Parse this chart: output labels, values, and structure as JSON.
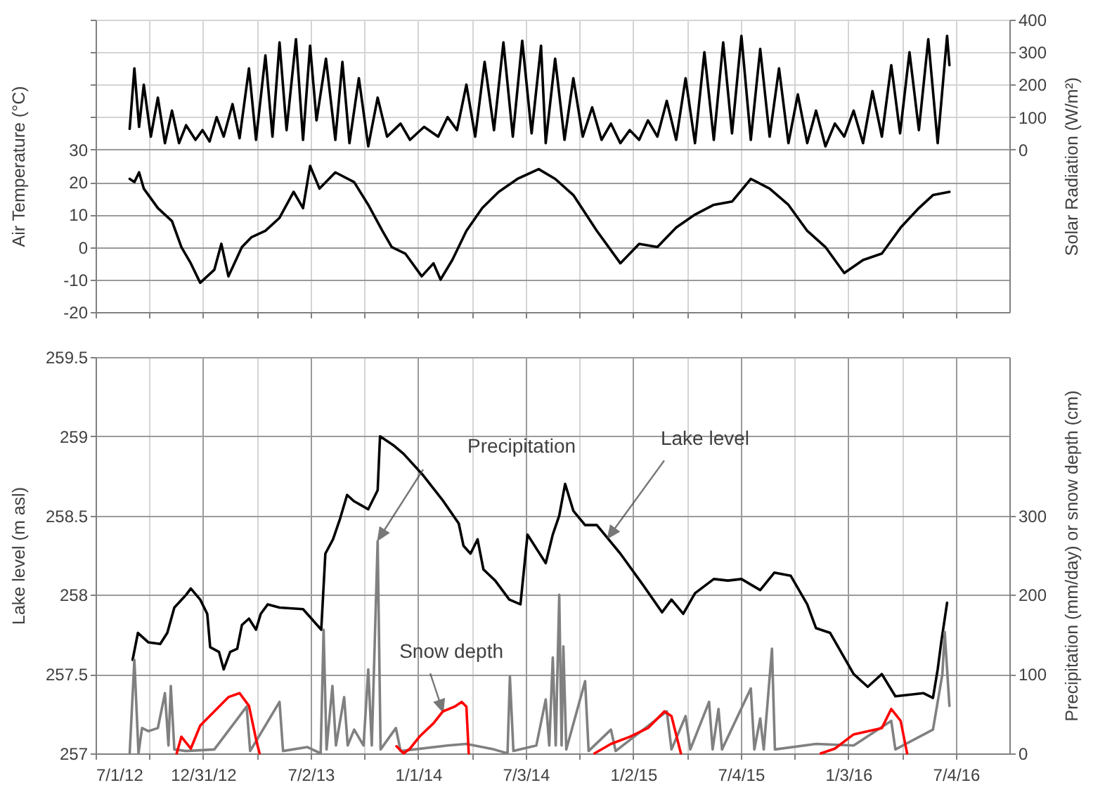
{
  "chart_data": [
    {
      "type": "line",
      "ylabel": "Air Temperature (°C)",
      "y2label": "Solar Radiation (W/m²)",
      "tick_labels": "y",
      "grid": true,
      "xlim": [
        "2012-07-01",
        "2016-10-03"
      ],
      "xticks": [
        {
          "value": "2012-07-01",
          "label": null
        },
        {
          "value": "2012-09-30",
          "label": null
        },
        {
          "value": "2012-12-31",
          "label": null
        },
        {
          "value": "2013-04-01",
          "label": null
        },
        {
          "value": "2013-07-02",
          "label": null
        },
        {
          "value": "2013-10-01",
          "label": null
        },
        {
          "value": "2014-01-01",
          "label": null
        },
        {
          "value": "2014-04-02",
          "label": null
        },
        {
          "value": "2014-07-03",
          "label": null
        },
        {
          "value": "2014-10-02",
          "label": null
        },
        {
          "value": "2015-01-02",
          "label": null
        },
        {
          "value": "2015-04-03",
          "label": null
        },
        {
          "value": "2015-07-04",
          "label": null
        },
        {
          "value": "2015-10-03",
          "label": null
        },
        {
          "value": "2016-01-03",
          "label": null
        },
        {
          "value": "2016-04-03",
          "label": null
        },
        {
          "value": "2016-07-04",
          "label": null
        }
      ],
      "ylim": [
        -20,
        70
      ],
      "yticks": [
        -20,
        -10,
        0,
        10,
        20,
        30,
        {
          "value": 40,
          "label": null
        },
        {
          "value": 50,
          "label": null
        },
        {
          "value": 60,
          "label": null
        },
        {
          "value": 70,
          "label": null
        }
      ],
      "y2lim": [
        -500,
        400
      ],
      "y2ticks": [
        0,
        100,
        200,
        300,
        400
      ],
      "series": [
        {
          "color": "#000000",
          "x": [
            "2012-08-28",
            "2012-09-05",
            "2012-09-13",
            "2012-09-21",
            "2012-10-15",
            "2012-11-08",
            "2012-11-24",
            "2012-12-10",
            "2012-12-26",
            "2013-01-19",
            "2013-01-31",
            "2013-02-12",
            "2013-03-07",
            "2013-03-23",
            "2013-04-16",
            "2013-05-10",
            "2013-06-03",
            "2013-06-19",
            "2013-07-01",
            "2013-07-17",
            "2013-08-13",
            "2013-09-14",
            "2013-10-08",
            "2013-11-01",
            "2013-11-17",
            "2013-12-10",
            "2014-01-07",
            "2014-01-27",
            "2014-02-08",
            "2014-02-28",
            "2014-03-24",
            "2014-04-20",
            "2014-05-18",
            "2014-06-19",
            "2014-07-25",
            "2014-08-22",
            "2014-09-22",
            "2014-11-01",
            "2014-11-25",
            "2014-12-11",
            "2015-01-12",
            "2015-02-12",
            "2015-03-16",
            "2015-04-17",
            "2015-05-19",
            "2015-06-19",
            "2015-07-21",
            "2015-08-22",
            "2015-09-23",
            "2015-10-25",
            "2015-11-25",
            "2015-12-27",
            "2016-01-28",
            "2016-02-29",
            "2016-04-01",
            "2016-05-02",
            "2016-05-26",
            "2016-06-23"
          ],
          "values": [
            21,
            20,
            23,
            18,
            12,
            8,
            0,
            -5,
            -11,
            -7,
            1,
            -9,
            0,
            3,
            5,
            9,
            17,
            12,
            25,
            18,
            23,
            20,
            13,
            5,
            0,
            -2,
            -9,
            -5,
            -10,
            -4,
            5,
            12,
            17,
            21,
            24,
            21,
            16,
            5,
            -1,
            -5,
            1,
            0,
            6,
            10,
            13,
            14,
            21,
            18,
            13,
            5,
            0,
            -8,
            -4,
            -2,
            6,
            12,
            16,
            17
          ]
        },
        {
          "color": "#000000",
          "axis": "y2",
          "x": [
            "2012-08-28",
            "2012-09-05",
            "2012-09-13",
            "2012-09-21",
            "2012-10-03",
            "2012-10-15",
            "2012-10-27",
            "2012-11-08",
            "2012-11-20",
            "2012-12-02",
            "2012-12-18",
            "2012-12-30",
            "2013-01-11",
            "2013-01-23",
            "2013-02-04",
            "2013-02-19",
            "2013-03-03",
            "2013-03-19",
            "2013-03-31",
            "2013-04-16",
            "2013-04-28",
            "2013-05-10",
            "2013-05-22",
            "2013-06-07",
            "2013-06-19",
            "2013-07-01",
            "2013-07-12",
            "2013-07-28",
            "2013-08-13",
            "2013-08-25",
            "2013-09-06",
            "2013-09-22",
            "2013-10-08",
            "2013-10-24",
            "2013-11-09",
            "2013-12-02",
            "2013-12-18",
            "2014-01-11",
            "2014-02-04",
            "2014-02-20",
            "2014-03-08",
            "2014-03-24",
            "2014-04-08",
            "2014-04-24",
            "2014-05-10",
            "2014-05-26",
            "2014-06-11",
            "2014-06-27",
            "2014-07-13",
            "2014-07-29",
            "2014-08-06",
            "2014-08-22",
            "2014-09-07",
            "2014-09-22",
            "2014-10-08",
            "2014-10-24",
            "2014-11-09",
            "2014-11-25",
            "2014-12-11",
            "2014-12-27",
            "2015-01-12",
            "2015-01-27",
            "2015-02-12",
            "2015-02-28",
            "2015-03-16",
            "2015-04-01",
            "2015-04-17",
            "2015-05-03",
            "2015-05-19",
            "2015-06-04",
            "2015-06-19",
            "2015-07-05",
            "2015-07-21",
            "2015-08-06",
            "2015-08-22",
            "2015-09-07",
            "2015-09-23",
            "2015-10-09",
            "2015-10-25",
            "2015-11-09",
            "2015-11-25",
            "2015-12-11",
            "2015-12-27",
            "2016-01-12",
            "2016-01-28",
            "2016-02-13",
            "2016-02-29",
            "2016-03-16",
            "2016-03-31",
            "2016-04-16",
            "2016-05-02",
            "2016-05-18",
            "2016-06-03",
            "2016-06-19",
            "2016-06-23"
          ],
          "values": [
            64,
            250,
            70,
            200,
            40,
            160,
            20,
            120,
            20,
            75,
            30,
            60,
            25,
            100,
            40,
            140,
            35,
            250,
            30,
            290,
            40,
            330,
            60,
            340,
            30,
            320,
            90,
            280,
            30,
            270,
            20,
            220,
            10,
            160,
            40,
            80,
            30,
            70,
            40,
            100,
            60,
            200,
            40,
            270,
            60,
            330,
            40,
            335,
            50,
            320,
            20,
            280,
            30,
            220,
            40,
            130,
            30,
            80,
            20,
            60,
            30,
            90,
            40,
            150,
            30,
            220,
            20,
            300,
            30,
            330,
            50,
            350,
            30,
            310,
            40,
            250,
            20,
            170,
            20,
            120,
            10,
            80,
            40,
            120,
            20,
            180,
            40,
            260,
            50,
            300,
            60,
            340,
            20,
            350,
            260
          ]
        }
      ]
    },
    {
      "type": "line",
      "ylabel": "Lake level (m asl)",
      "y2label": "Precipitation (mm/day) or snow depth (cm)",
      "grid": true,
      "xlim": [
        "2012-07-01",
        "2016-10-03"
      ],
      "xticks": [
        {
          "value": "2012-07-01",
          "label": "7/1/12"
        },
        {
          "value": "2012-09-30",
          "label": null
        },
        {
          "value": "2012-12-31",
          "label": "12/31/12"
        },
        {
          "value": "2013-04-01",
          "label": null
        },
        {
          "value": "2013-07-02",
          "label": "7/2/13"
        },
        {
          "value": "2013-10-01",
          "label": null
        },
        {
          "value": "2014-01-01",
          "label": "1/1/14"
        },
        {
          "value": "2014-04-02",
          "label": null
        },
        {
          "value": "2014-07-03",
          "label": "7/3/14"
        },
        {
          "value": "2014-10-02",
          "label": null
        },
        {
          "value": "2015-01-02",
          "label": "1/2/15"
        },
        {
          "value": "2015-04-03",
          "label": null
        },
        {
          "value": "2015-07-04",
          "label": "7/4/15"
        },
        {
          "value": "2015-10-03",
          "label": null
        },
        {
          "value": "2016-01-03",
          "label": "1/3/16"
        },
        {
          "value": "2016-04-03",
          "label": null
        },
        {
          "value": "2016-07-04",
          "label": "7/4/16"
        }
      ],
      "ylim": [
        257,
        259.5
      ],
      "yticks": [
        257,
        257.5,
        258,
        258.5,
        259,
        259.5
      ],
      "y2lim": [
        0,
        500
      ],
      "y2ticks": [
        0,
        100,
        200,
        300
      ],
      "annotations": [
        "Precipitation",
        {
          "text": "Lake level",
          "x": "2014-11-20",
          "y": 258.36
        },
        {
          "text": "Snow depth",
          "x": "2014-02-12",
          "y": 257.265
        }
      ],
      "series": [
        {
          "color": "#808080",
          "axis": "y2",
          "x": [
            "2012-08-28",
            "2012-09-05",
            "2012-09-12",
            "2012-09-18",
            "2012-09-29",
            "2012-10-15",
            "2012-10-27",
            "2012-11-02",
            "2012-11-06",
            "2012-11-12",
            "2012-12-02",
            "2013-01-19",
            "2013-03-15",
            "2013-03-21",
            "2013-05-10",
            "2013-05-16",
            "2013-06-26",
            "2013-07-19",
            "2013-07-24",
            "2013-07-29",
            "2013-08-08",
            "2013-08-14",
            "2013-08-28",
            "2013-09-03",
            "2013-09-14",
            "2013-09-30",
            "2013-10-08",
            "2013-10-14",
            "2013-10-24",
            "2013-10-29",
            "2013-11-24",
            "2013-12-02",
            "2014-02-20",
            "2014-03-24",
            "2014-05-10",
            "2014-06-02",
            "2014-06-06",
            "2014-06-12",
            "2014-07-21",
            "2014-08-06",
            "2014-08-12",
            "2014-08-18",
            "2014-08-23",
            "2014-08-29",
            "2014-09-02",
            "2014-09-05",
            "2014-09-10",
            "2014-10-12",
            "2014-10-18",
            "2014-11-25",
            "2014-12-03",
            "2015-02-28",
            "2015-03-08",
            "2015-04-01",
            "2015-04-09",
            "2015-05-11",
            "2015-05-17",
            "2015-05-27",
            "2015-06-02",
            "2015-07-21",
            "2015-07-27",
            "2015-08-06",
            "2015-08-12",
            "2015-08-26",
            "2015-08-31",
            "2015-11-09",
            "2016-01-12",
            "2016-03-16",
            "2016-03-23",
            "2016-05-26",
            "2016-06-11",
            "2016-06-15",
            "2016-06-19",
            "2016-06-23"
          ],
          "values": [
            0,
            118,
            0,
            32,
            28,
            32,
            76,
            10,
            85,
            5,
            3,
            5,
            59,
            3,
            65,
            3,
            8,
            0,
            156,
            5,
            85,
            10,
            71,
            10,
            30,
            10,
            106,
            10,
            268,
            5,
            32,
            3,
            10,
            12,
            5,
            0,
            97,
            3,
            10,
            68,
            10,
            121,
            10,
            200,
            10,
            135,
            5,
            91,
            3,
            30,
            3,
            53,
            5,
            47,
            5,
            65,
            5,
            56,
            5,
            82,
            5,
            44,
            5,
            132,
            5,
            12,
            10,
            41,
            5,
            30,
            100,
            153,
            106,
            60
          ]
        },
        {
          "color": "#000000",
          "x": [
            "2012-09-02",
            "2012-09-11",
            "2012-09-29",
            "2012-10-19",
            "2012-10-31",
            "2012-11-12",
            "2012-12-02",
            "2012-12-10",
            "2012-12-26",
            "2013-01-07",
            "2013-01-12",
            "2013-01-27",
            "2013-02-04",
            "2013-02-15",
            "2013-02-27",
            "2013-03-07",
            "2013-03-19",
            "2013-03-31",
            "2013-04-08",
            "2013-04-20",
            "2013-05-10",
            "2013-06-19",
            "2013-07-01",
            "2013-07-20",
            "2013-07-27",
            "2013-08-09",
            "2013-08-21",
            "2013-09-02",
            "2013-09-14",
            "2013-10-08",
            "2013-10-24",
            "2013-10-28",
            "2013-11-21",
            "2013-12-07",
            "2014-01-08",
            "2014-02-11",
            "2014-03-11",
            "2014-03-19",
            "2014-03-31",
            "2014-04-12",
            "2014-04-22",
            "2014-05-12",
            "2014-06-05",
            "2014-06-24",
            "2014-07-06",
            "2014-08-06",
            "2014-08-18",
            "2014-08-29",
            "2014-09-08",
            "2014-09-22",
            "2014-10-12",
            "2014-11-01",
            "2014-12-11",
            "2015-01-19",
            "2015-02-20",
            "2015-03-08",
            "2015-03-28",
            "2015-04-17",
            "2015-05-19",
            "2015-06-12",
            "2015-07-05",
            "2015-08-06",
            "2015-08-30",
            "2015-09-27",
            "2015-10-25",
            "2015-11-09",
            "2015-12-03",
            "2016-01-12",
            "2016-02-05",
            "2016-02-29",
            "2016-03-23",
            "2016-05-10",
            "2016-05-26",
            "2016-06-03",
            "2016-06-09",
            "2016-06-19"
          ],
          "values": [
            257.59,
            257.76,
            257.7,
            257.69,
            257.76,
            257.92,
            258.0,
            258.04,
            257.97,
            257.88,
            257.67,
            257.64,
            257.53,
            257.64,
            257.66,
            257.81,
            257.85,
            257.78,
            257.88,
            257.94,
            257.92,
            257.91,
            257.86,
            257.78,
            258.26,
            258.35,
            258.48,
            258.63,
            258.59,
            258.54,
            258.66,
            259.0,
            258.94,
            258.89,
            258.76,
            258.6,
            258.45,
            258.31,
            258.26,
            258.35,
            258.16,
            258.09,
            257.97,
            257.94,
            258.38,
            258.2,
            258.38,
            258.5,
            258.7,
            258.53,
            258.44,
            258.44,
            258.26,
            258.06,
            257.89,
            257.97,
            257.88,
            258.01,
            258.1,
            258.09,
            258.1,
            258.03,
            258.14,
            258.12,
            257.94,
            257.79,
            257.76,
            257.5,
            257.42,
            257.5,
            257.36,
            257.38,
            257.35,
            257.53,
            257.7,
            257.95
          ]
        },
        {
          "color": "#ff0000",
          "axis": "y2",
          "x": [
            "2012-11-16",
            "2012-11-24",
            "2012-12-10",
            "2012-12-26",
            "2013-01-19",
            "2013-02-12",
            "2013-03-03",
            "2013-03-19",
            "2013-03-31",
            "2013-04-06",
            "2013-07-01",
            "2013-11-25",
            "2013-12-07",
            "2013-12-18",
            "2014-01-03",
            "2014-01-27",
            "2014-02-12",
            "2014-03-04",
            "2014-03-16",
            "2014-03-24",
            "2014-03-28",
            "2014-07-01",
            "2014-10-28",
            "2014-11-25",
            "2014-12-27",
            "2015-01-27",
            "2015-02-24",
            "2015-03-08",
            "2015-03-24",
            "2015-07-01",
            "2015-11-17",
            "2015-12-11",
            "2016-01-12",
            "2016-02-29",
            "2016-03-16",
            "2016-04-01",
            "2016-04-12"
          ],
          "values": [
            0,
            21,
            6,
            35,
            53,
            71,
            76,
            60,
            18,
            0,
            null,
            9,
            0,
            6,
            21,
            38,
            53,
            59,
            65,
            59,
            0,
            null,
            0,
            12,
            21,
            32,
            53,
            47,
            0,
            null,
            0,
            6,
            24,
            32,
            56,
            41,
            0
          ]
        }
      ]
    }
  ]
}
